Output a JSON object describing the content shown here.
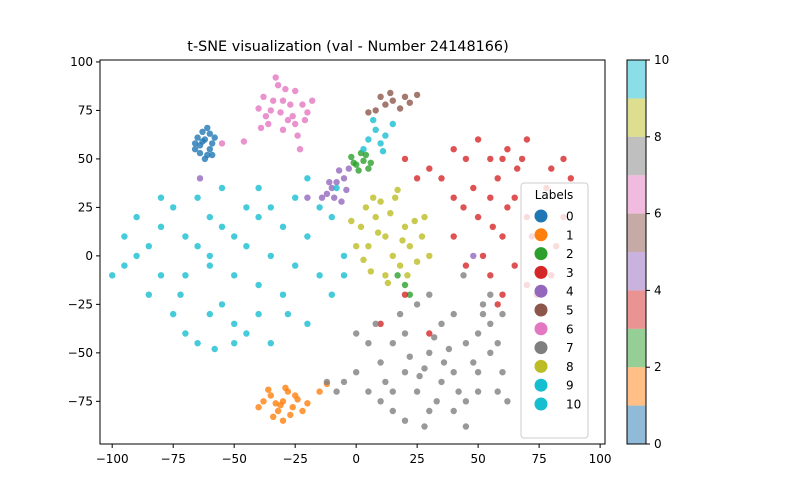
{
  "chart_data": {
    "type": "scatter",
    "title": "t-SNE visualization (val - Number 24148166)",
    "xlabel": "",
    "ylabel": "",
    "xlim": [
      -105,
      102
    ],
    "ylim": [
      -97,
      101
    ],
    "xticks": [
      -100,
      -75,
      -50,
      -25,
      0,
      25,
      50,
      75,
      100
    ],
    "yticks": [
      -75,
      -50,
      -25,
      0,
      25,
      50,
      75,
      100
    ],
    "xtick_labels": [
      "−100",
      "−75",
      "−50",
      "−25",
      "0",
      "25",
      "50",
      "75",
      "100"
    ],
    "ytick_labels": [
      "−75",
      "−50",
      "−25",
      "0",
      "25",
      "50",
      "75",
      "100"
    ],
    "grid": false,
    "legend": {
      "title": "Labels",
      "placement": "lower-right",
      "entries": [
        {
          "label": "0",
          "color": "#1f77b4"
        },
        {
          "label": "1",
          "color": "#ff7f0e"
        },
        {
          "label": "2",
          "color": "#2ca02c"
        },
        {
          "label": "3",
          "color": "#d62728"
        },
        {
          "label": "4",
          "color": "#9467bd"
        },
        {
          "label": "5",
          "color": "#8c564b"
        },
        {
          "label": "6",
          "color": "#e377c2"
        },
        {
          "label": "7",
          "color": "#7f7f7f"
        },
        {
          "label": "8",
          "color": "#bcbd22"
        },
        {
          "label": "9",
          "color": "#17becf"
        },
        {
          "label": "10",
          "color": "#17becf"
        }
      ]
    },
    "colorbar": {
      "range": [
        0,
        10
      ],
      "ticks": [
        0,
        2,
        4,
        6,
        8,
        10
      ],
      "tick_labels": [
        "0",
        "2",
        "4",
        "6",
        "8",
        "10"
      ],
      "colors": [
        "#1f77b4",
        "#ff7f0e",
        "#2ca02c",
        "#d62728",
        "#9467bd",
        "#8c564b",
        "#e377c2",
        "#7f7f7f",
        "#bcbd22",
        "#17becf"
      ]
    },
    "series": [
      {
        "label": "0",
        "color": "#1f77b4",
        "points": [
          [
            -62,
            60
          ],
          [
            -64,
            57
          ],
          [
            -60,
            63
          ],
          [
            -66,
            55
          ],
          [
            -61,
            52
          ],
          [
            -59,
            58
          ],
          [
            -63,
            64
          ],
          [
            -65,
            61
          ],
          [
            -60,
            55
          ],
          [
            -62,
            50
          ],
          [
            -58,
            61
          ],
          [
            -66,
            58
          ],
          [
            -61,
            66
          ],
          [
            -64,
            53
          ],
          [
            -59,
            52
          ],
          [
            -63,
            59
          ]
        ]
      },
      {
        "label": "1",
        "color": "#ff7f0e",
        "points": [
          [
            -30,
            -75
          ],
          [
            -35,
            -72
          ],
          [
            -26,
            -78
          ],
          [
            -32,
            -80
          ],
          [
            -38,
            -75
          ],
          [
            -28,
            -70
          ],
          [
            -24,
            -74
          ],
          [
            -34,
            -83
          ],
          [
            -30,
            -85
          ],
          [
            -40,
            -78
          ],
          [
            -22,
            -80
          ],
          [
            -27,
            -82
          ],
          [
            -36,
            -69
          ],
          [
            -31,
            -77
          ],
          [
            -25,
            -72
          ],
          [
            -33,
            -76
          ],
          [
            -29,
            -68
          ],
          [
            -20,
            -76
          ],
          [
            -15,
            -70
          ],
          [
            -12,
            -66
          ]
        ]
      },
      {
        "label": "2",
        "color": "#2ca02c",
        "points": [
          [
            0,
            47
          ],
          [
            3,
            49
          ],
          [
            -2,
            51
          ],
          [
            5,
            45
          ],
          [
            1,
            44
          ],
          [
            -1,
            48
          ],
          [
            4,
            52
          ],
          [
            6,
            48
          ],
          [
            2,
            53
          ],
          [
            17,
            -10
          ],
          [
            20,
            -15
          ],
          [
            22,
            -20
          ]
        ]
      },
      {
        "label": "3",
        "color": "#d62728",
        "points": [
          [
            65,
            30
          ],
          [
            60,
            10
          ],
          [
            55,
            -10
          ],
          [
            70,
            20
          ],
          [
            75,
            0
          ],
          [
            58,
            40
          ],
          [
            62,
            55
          ],
          [
            70,
            60
          ],
          [
            80,
            45
          ],
          [
            85,
            50
          ],
          [
            45,
            50
          ],
          [
            30,
            45
          ],
          [
            20,
            50
          ],
          [
            40,
            55
          ],
          [
            50,
            60
          ],
          [
            55,
            30
          ],
          [
            40,
            10
          ],
          [
            45,
            -5
          ],
          [
            60,
            -20
          ],
          [
            70,
            -15
          ],
          [
            80,
            -10
          ],
          [
            85,
            20
          ],
          [
            78,
            35
          ],
          [
            50,
            20
          ],
          [
            65,
            -5
          ],
          [
            58,
            -25
          ],
          [
            72,
            10
          ],
          [
            55,
            50
          ],
          [
            35,
            40
          ],
          [
            25,
            40
          ],
          [
            48,
            35
          ],
          [
            66,
            45
          ],
          [
            52,
            0
          ],
          [
            62,
            25
          ],
          [
            74,
            -20
          ],
          [
            82,
            5
          ],
          [
            88,
            40
          ],
          [
            44,
            25
          ],
          [
            68,
            50
          ],
          [
            56,
            15
          ],
          [
            40,
            30
          ],
          [
            60,
            50
          ],
          [
            30,
            -40
          ],
          [
            20,
            -20
          ],
          [
            10,
            -35
          ]
        ]
      },
      {
        "label": "4",
        "color": "#9467bd",
        "points": [
          [
            -8,
            38
          ],
          [
            -10,
            35
          ],
          [
            -5,
            40
          ],
          [
            -12,
            32
          ],
          [
            -7,
            44
          ],
          [
            -9,
            30
          ],
          [
            -4,
            34
          ],
          [
            -11,
            38
          ],
          [
            -6,
            28
          ],
          [
            -14,
            30
          ],
          [
            -20,
            30
          ],
          [
            -3,
            45
          ],
          [
            -64,
            40
          ],
          [
            48,
            0
          ]
        ]
      },
      {
        "label": "5",
        "color": "#8c564b",
        "points": [
          [
            15,
            80
          ],
          [
            12,
            78
          ],
          [
            20,
            82
          ],
          [
            8,
            75
          ],
          [
            18,
            76
          ],
          [
            22,
            79
          ],
          [
            10,
            82
          ],
          [
            14,
            84
          ],
          [
            25,
            83
          ],
          [
            5,
            74
          ]
        ]
      },
      {
        "label": "6",
        "color": "#e377c2",
        "points": [
          [
            -30,
            80
          ],
          [
            -35,
            75
          ],
          [
            -25,
            85
          ],
          [
            -28,
            70
          ],
          [
            -22,
            78
          ],
          [
            -38,
            82
          ],
          [
            -32,
            88
          ],
          [
            -26,
            72
          ],
          [
            -36,
            68
          ],
          [
            -20,
            74
          ],
          [
            -30,
            65
          ],
          [
            -24,
            62
          ],
          [
            -40,
            76
          ],
          [
            -18,
            80
          ],
          [
            -33,
            92
          ],
          [
            -27,
            78
          ],
          [
            -34,
            80
          ],
          [
            -29,
            86
          ],
          [
            -37,
            72
          ],
          [
            -21,
            70
          ],
          [
            -31,
            74
          ],
          [
            -25,
            68
          ],
          [
            -39,
            66
          ],
          [
            -46,
            59
          ],
          [
            -55,
            58
          ],
          [
            -23,
            55
          ]
        ]
      },
      {
        "label": "7",
        "color": "#7f7f7f",
        "points": [
          [
            30,
            -50
          ],
          [
            20,
            -40
          ],
          [
            40,
            -60
          ],
          [
            25,
            -70
          ],
          [
            45,
            -45
          ],
          [
            10,
            -55
          ],
          [
            35,
            -35
          ],
          [
            15,
            -70
          ],
          [
            50,
            -60
          ],
          [
            30,
            -80
          ],
          [
            5,
            -45
          ],
          [
            40,
            -30
          ],
          [
            20,
            -60
          ],
          [
            45,
            -75
          ],
          [
            10,
            -75
          ],
          [
            35,
            -65
          ],
          [
            25,
            -25
          ],
          [
            50,
            -40
          ],
          [
            0,
            -60
          ],
          [
            30,
            -20
          ],
          [
            20,
            -85
          ],
          [
            40,
            -80
          ],
          [
            55,
            -50
          ],
          [
            8,
            -35
          ],
          [
            15,
            -45
          ],
          [
            38,
            -48
          ],
          [
            28,
            -58
          ],
          [
            48,
            -55
          ],
          [
            18,
            -30
          ],
          [
            12,
            -65
          ],
          [
            42,
            -70
          ],
          [
            33,
            -75
          ],
          [
            22,
            -52
          ],
          [
            5,
            -70
          ],
          [
            52,
            -30
          ],
          [
            -5,
            -65
          ],
          [
            -8,
            -70
          ],
          [
            -12,
            -65
          ],
          [
            58,
            -45
          ],
          [
            60,
            -60
          ],
          [
            45,
            -88
          ],
          [
            28,
            -88
          ],
          [
            55,
            -20
          ],
          [
            0,
            -40
          ],
          [
            32,
            -42
          ],
          [
            26,
            -62
          ],
          [
            36,
            -55
          ],
          [
            50,
            -70
          ],
          [
            15,
            -80
          ],
          [
            44,
            -10
          ],
          [
            52,
            -25
          ],
          [
            55,
            -35
          ],
          [
            60,
            -30
          ],
          [
            62,
            -75
          ],
          [
            58,
            -70
          ]
        ]
      },
      {
        "label": "8",
        "color": "#bcbd22",
        "points": [
          [
            12,
            10
          ],
          [
            8,
            20
          ],
          [
            15,
            0
          ],
          [
            5,
            5
          ],
          [
            20,
            15
          ],
          [
            10,
            28
          ],
          [
            18,
            -5
          ],
          [
            2,
            15
          ],
          [
            22,
            5
          ],
          [
            14,
            22
          ],
          [
            6,
            -8
          ],
          [
            16,
            30
          ],
          [
            24,
            18
          ],
          [
            4,
            25
          ],
          [
            12,
            -10
          ],
          [
            25,
            -3
          ],
          [
            0,
            5
          ],
          [
            9,
            12
          ],
          [
            19,
            8
          ],
          [
            13,
            -14
          ],
          [
            27,
            10
          ],
          [
            3,
            -2
          ],
          [
            28,
            20
          ],
          [
            7,
            30
          ],
          [
            17,
            34
          ],
          [
            21,
            -10
          ],
          [
            -2,
            18
          ],
          [
            30,
            0
          ]
        ]
      },
      {
        "label": "9",
        "color": "#17becf",
        "points": [
          [
            -60,
            0
          ],
          [
            -50,
            10
          ],
          [
            -70,
            -10
          ],
          [
            -40,
            20
          ],
          [
            -80,
            15
          ],
          [
            -55,
            -25
          ],
          [
            -65,
            30
          ],
          [
            -45,
            -40
          ],
          [
            -75,
            -30
          ],
          [
            -35,
            0
          ],
          [
            -90,
            0
          ],
          [
            -50,
            -10
          ],
          [
            -60,
            20
          ],
          [
            -30,
            -20
          ],
          [
            -85,
            -20
          ],
          [
            -40,
            -30
          ],
          [
            -70,
            10
          ],
          [
            -20,
            10
          ],
          [
            -55,
            35
          ],
          [
            -65,
            -45
          ],
          [
            -25,
            30
          ],
          [
            -95,
            -5
          ],
          [
            -45,
            5
          ],
          [
            -75,
            25
          ],
          [
            -35,
            -45
          ],
          [
            -15,
            -10
          ],
          [
            -50,
            -35
          ],
          [
            -80,
            -10
          ],
          [
            -60,
            -5
          ],
          [
            -30,
            15
          ],
          [
            -10,
            20
          ],
          [
            -5,
            0
          ],
          [
            -20,
            -35
          ],
          [
            -85,
            5
          ],
          [
            -40,
            35
          ],
          [
            -70,
            -40
          ],
          [
            -10,
            -20
          ],
          [
            -55,
            15
          ],
          [
            -25,
            -5
          ],
          [
            -65,
            5
          ],
          [
            -45,
            25
          ],
          [
            -90,
            20
          ],
          [
            -35,
            25
          ],
          [
            -80,
            30
          ],
          [
            -100,
            -10
          ],
          [
            -50,
            -45
          ],
          [
            -60,
            -30
          ],
          [
            -15,
            25
          ],
          [
            -5,
            -10
          ],
          [
            -40,
            -15
          ],
          [
            -72,
            -20
          ],
          [
            -28,
            -30
          ],
          [
            -58,
            -48
          ],
          [
            -95,
            10
          ],
          [
            -20,
            40
          ],
          [
            -8,
            35
          ]
        ]
      },
      {
        "label": "10",
        "color": "#17becf",
        "points": [
          [
            5,
            60
          ],
          [
            8,
            65
          ],
          [
            10,
            58
          ],
          [
            12,
            62
          ],
          [
            3,
            55
          ],
          [
            15,
            68
          ],
          [
            7,
            70
          ],
          [
            11,
            54
          ]
        ]
      }
    ]
  }
}
